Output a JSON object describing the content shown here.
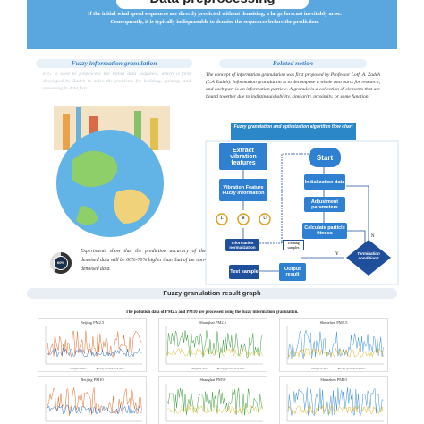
{
  "header": {
    "title": "Data preprocessing",
    "intro": "If the initial wind speed sequences are directly predicted without denoising, a large forecast inevitably arise. Consequently, it is typically indispensable to denoise the sequences before the prediction."
  },
  "left": {
    "heading": "Fuzzy information granulation",
    "text": "FIG is used to preprocess the initial data sequence, which is first developed by Zadeh to solve the problems for building, gaining, and reasoning in data fuzz.",
    "percent": "60%",
    "result": "Experiments show that the prediction accuracy of the denoised data will be 60%-70% higher than that of the non-denoised data."
  },
  "right": {
    "heading": "Related notion",
    "text": "The concept of information granulation was first proposed by Professor Lotfi A. Zadeh (L.A Zadeh). Information granulation is to decompose a whole into parts for research, and each part is an information particle. A granule is a collection of elements that are bound together due to indistinguishability, similarity, proximity, or some function.",
    "flow_title": "Fuzzy granulation and optimization algorithm flow chart",
    "nodes": [
      "Extract vibration features",
      "Vibration Feature Fuzzy Information",
      "L",
      "R",
      "U",
      "Information normalization",
      "Training samples",
      "Test sample",
      "Output result",
      "Start",
      "Initialization data",
      "Adjustment parameters",
      "Calculate particle fitness",
      "Termination condition?",
      "Y",
      "N"
    ]
  },
  "bottom": {
    "heading": "Fuzzy granulation result graph",
    "caption": "The pollution data of PM2.5 and PM10 are processed using the fuzzy information granulation.",
    "panels": [
      "Beijing PM2.5",
      "Shanghai PM2.5",
      "Shenzhen PM2.5",
      "Beijing PM10",
      "Shanghai PM10",
      "Shenzhen PM10"
    ],
    "legend": [
      "Original data",
      "Fuzzy granulated data"
    ]
  }
}
